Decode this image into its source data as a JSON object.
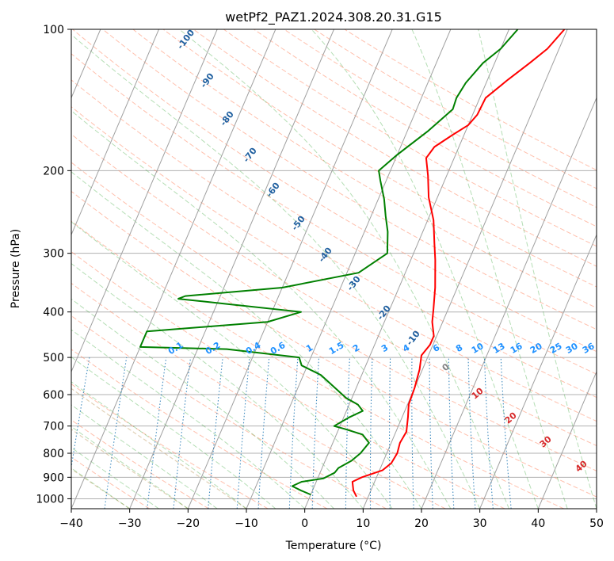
{
  "chart_data": {
    "type": "line",
    "title": "wetPf2_PAZ1.2024.308.20.31.G15",
    "xlabel": "Temperature (°C)",
    "ylabel": "Pressure (hPa)",
    "xlim": [
      -40,
      50
    ],
    "ylim": [
      1050,
      100
    ],
    "y_scale": "log",
    "x_ticks": [
      -40,
      -30,
      -20,
      -10,
      0,
      10,
      20,
      30,
      40,
      50
    ],
    "y_ticks": [
      100,
      200,
      300,
      400,
      500,
      600,
      700,
      800,
      900,
      1000
    ],
    "grid": true,
    "skew": 35,
    "series": [
      {
        "color": "#ff0000",
        "points": [
          [
            8,
            990
          ],
          [
            7,
            960
          ],
          [
            6.2,
            920
          ],
          [
            7.5,
            900
          ],
          [
            10.5,
            870
          ],
          [
            11.5,
            840
          ],
          [
            11.8,
            800
          ],
          [
            11.5,
            760
          ],
          [
            11.8,
            720
          ],
          [
            11,
            670
          ],
          [
            10.2,
            630
          ],
          [
            10,
            580
          ],
          [
            9.5,
            530
          ],
          [
            8.8,
            495
          ],
          [
            9.5,
            470
          ],
          [
            9.5,
            450
          ],
          [
            8.2,
            420
          ],
          [
            7.5,
            395
          ],
          [
            6.2,
            355
          ],
          [
            4.2,
            310
          ],
          [
            2.8,
            285
          ],
          [
            1,
            255
          ],
          [
            -1.5,
            228
          ],
          [
            -3.2,
            205
          ],
          [
            -4.8,
            188
          ],
          [
            -4.2,
            178
          ],
          [
            -2,
            168
          ],
          [
            0,
            160
          ],
          [
            0.8,
            152
          ],
          [
            1,
            140
          ],
          [
            3.5,
            128
          ],
          [
            6,
            118
          ],
          [
            8,
            110
          ],
          [
            9.5,
            100
          ]
        ]
      },
      {
        "color": "#008000",
        "points": [
          [
            0,
            980
          ],
          [
            -2,
            960
          ],
          [
            -3.8,
            940
          ],
          [
            -2.5,
            920
          ],
          [
            1,
            905
          ],
          [
            2.5,
            880
          ],
          [
            2.8,
            860
          ],
          [
            4.5,
            830
          ],
          [
            5.5,
            800
          ],
          [
            6.2,
            760
          ],
          [
            4.5,
            730
          ],
          [
            1,
            710
          ],
          [
            -1,
            700
          ],
          [
            1,
            670
          ],
          [
            2.8,
            650
          ],
          [
            1.5,
            630
          ],
          [
            -1,
            610
          ],
          [
            -7,
            545
          ],
          [
            -11,
            520
          ],
          [
            -12,
            500
          ],
          [
            -25,
            480
          ],
          [
            -40,
            475
          ],
          [
            -40,
            440
          ],
          [
            -20,
            420
          ],
          [
            -15,
            400
          ],
          [
            -28,
            385
          ],
          [
            -37,
            375
          ],
          [
            -36,
            370
          ],
          [
            -20,
            355
          ],
          [
            -8,
            330
          ],
          [
            -4.5,
            300
          ],
          [
            -6,
            270
          ],
          [
            -7.5,
            250
          ],
          [
            -9,
            230
          ],
          [
            -11,
            210
          ],
          [
            -12,
            200
          ],
          [
            -10,
            185
          ],
          [
            -6.5,
            165
          ],
          [
            -3.8,
            148
          ],
          [
            -4,
            140
          ],
          [
            -3.5,
            130
          ],
          [
            -2,
            118
          ],
          [
            0,
            110
          ],
          [
            1.5,
            100
          ]
        ]
      }
    ],
    "dry_adiabat_labels": [
      -100,
      -90,
      -80,
      -70,
      -60,
      -50,
      -40,
      -30,
      -20,
      -10
    ],
    "mixing_ratio_labels": [
      "0.1",
      "0.2",
      "0.4",
      "0.6",
      "1",
      "1.5",
      "2",
      "3",
      "4",
      "6",
      "8",
      "10",
      "13",
      "16",
      "20",
      "25",
      "30",
      "36"
    ],
    "moist_adiabat_labels": [
      "0",
      "10",
      "20",
      "30",
      "40"
    ],
    "colors": {
      "temperature": "#ff0000",
      "dewpoint": "#008000",
      "isotherm": "#a0a0a0",
      "dry_adiabat": "#ff8c69",
      "moist_adiabat": "#2ca02c",
      "mixing_ratio": "#1f77b4",
      "mixing_label": "#1e90ff",
      "moist_label": "#d62728",
      "dry_label": "#1f5f9f",
      "theta_e": "#c8aa78"
    }
  }
}
